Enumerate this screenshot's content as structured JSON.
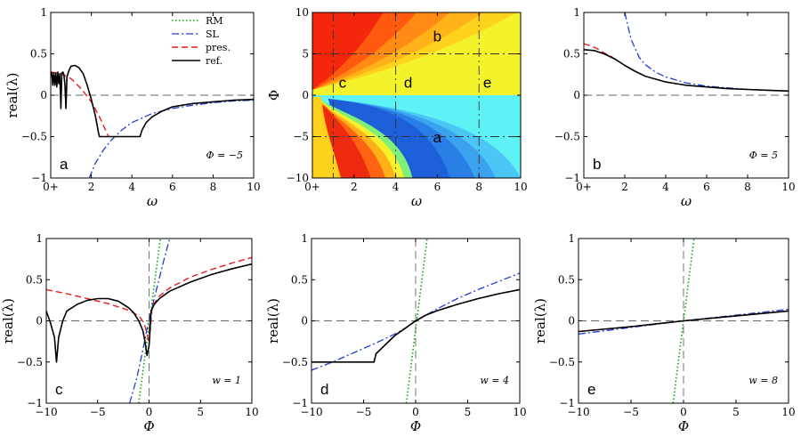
{
  "figure": {
    "colors": {
      "RM": "#00aa00",
      "SL": "#1f3fd8",
      "pres": "#e81a1a",
      "ref": "#000000",
      "zero": "#666666"
    },
    "legend": {
      "items": [
        {
          "key": "RM",
          "label": "RM"
        },
        {
          "key": "SL",
          "label": "SL"
        },
        {
          "key": "pres",
          "label": "pres."
        },
        {
          "key": "ref",
          "label": "ref."
        }
      ]
    }
  },
  "chart_data": [
    {
      "id": "a",
      "type": "line",
      "panel_label": "a",
      "annotation": "Φ = −5",
      "xlabel": "ω",
      "ylabel": "real(λ)",
      "xlim": [
        0,
        10
      ],
      "ylim": [
        -1,
        1
      ],
      "xticks": [
        {
          "v": 0,
          "label": "0+"
        },
        {
          "v": 2,
          "label": "2"
        },
        {
          "v": 4,
          "label": "4"
        },
        {
          "v": 6,
          "label": "6"
        },
        {
          "v": 8,
          "label": "8"
        },
        {
          "v": 10,
          "label": "10"
        }
      ],
      "yticks": [
        {
          "v": -1,
          "label": "−1"
        },
        {
          "v": -0.5,
          "label": "−0.5"
        },
        {
          "v": 0,
          "label": "0"
        },
        {
          "v": 0.5,
          "label": "0.5"
        },
        {
          "v": 1,
          "label": "1"
        }
      ],
      "refH": [
        0
      ],
      "refV": [],
      "legend": true,
      "series": [
        {
          "name": "SL",
          "style": "SL",
          "x": [
            1.9,
            2.2,
            2.6,
            3.0,
            3.5,
            4.0,
            5.0,
            6.0,
            7.0,
            8.0,
            9.0,
            10.0
          ],
          "y": [
            -1.0,
            -0.82,
            -0.66,
            -0.54,
            -0.42,
            -0.33,
            -0.22,
            -0.16,
            -0.12,
            -0.09,
            -0.07,
            -0.06
          ]
        },
        {
          "name": "pres.",
          "style": "pres",
          "x": [
            0,
            0.5,
            1.0,
            1.5,
            2.0,
            2.4,
            2.7,
            2.85
          ],
          "y": [
            0.28,
            0.26,
            0.2,
            0.08,
            -0.08,
            -0.26,
            -0.42,
            -0.5
          ]
        },
        {
          "name": "ref.",
          "style": "ref",
          "x": [
            0.05,
            0.1,
            0.15,
            0.2,
            0.25,
            0.3,
            0.35,
            0.4,
            0.45,
            0.5,
            0.55,
            0.6,
            0.65,
            0.7,
            0.75,
            0.8,
            0.9,
            1.0,
            1.2,
            1.4,
            1.6,
            1.8,
            2.0,
            2.2,
            2.35,
            2.4,
            4.4,
            4.5,
            4.7,
            5.0,
            5.5,
            6.0,
            7.0,
            8.0,
            9.0,
            10.0
          ],
          "y": [
            0.28,
            0.12,
            0.27,
            0.12,
            0.27,
            0.1,
            0.28,
            0.14,
            0.26,
            -0.16,
            0.27,
            0.28,
            0.25,
            0.12,
            -0.16,
            0.22,
            0.3,
            0.35,
            0.36,
            0.33,
            0.26,
            0.12,
            -0.05,
            -0.25,
            -0.45,
            -0.5,
            -0.5,
            -0.42,
            -0.33,
            -0.26,
            -0.19,
            -0.14,
            -0.1,
            -0.08,
            -0.06,
            -0.05
          ]
        }
      ]
    },
    {
      "id": "map",
      "type": "heatmap",
      "xlabel": "ω",
      "ylabel": "Φ",
      "xlim": [
        0,
        10
      ],
      "ylim": [
        -10,
        10
      ],
      "xticks": [
        {
          "v": 0,
          "label": "0+"
        },
        {
          "v": 2,
          "label": "2"
        },
        {
          "v": 4,
          "label": "4"
        },
        {
          "v": 6,
          "label": "6"
        },
        {
          "v": 8,
          "label": "8"
        },
        {
          "v": 10,
          "label": "10"
        }
      ],
      "yticks": [
        {
          "v": -10,
          "label": "−10"
        },
        {
          "v": -5,
          "label": "−5"
        },
        {
          "v": 0,
          "label": "0"
        },
        {
          "v": 5,
          "label": "5"
        },
        {
          "v": 10,
          "label": "10"
        }
      ],
      "dashH": [
        5,
        -5
      ],
      "dashV": [
        1,
        4,
        8
      ],
      "labels": [
        {
          "text": "b",
          "x": 6.0,
          "y": 6.5
        },
        {
          "text": "c",
          "x": 1.45,
          "y": 0.9
        },
        {
          "text": "d",
          "x": 4.6,
          "y": 0.9
        },
        {
          "text": "e",
          "x": 8.4,
          "y": 0.9
        },
        {
          "text": "a",
          "x": 6.0,
          "y": -5.7
        }
      ]
    },
    {
      "id": "b",
      "type": "line",
      "panel_label": "b",
      "annotation": "Φ = 5",
      "xlabel": "ω",
      "ylabel": "",
      "xlim": [
        0,
        10
      ],
      "ylim": [
        -1,
        1
      ],
      "xticks": [
        {
          "v": 0,
          "label": "0+"
        },
        {
          "v": 2,
          "label": "2"
        },
        {
          "v": 4,
          "label": "4"
        },
        {
          "v": 6,
          "label": "6"
        },
        {
          "v": 8,
          "label": "8"
        },
        {
          "v": 10,
          "label": "10"
        }
      ],
      "yticks": [
        {
          "v": -1,
          "label": "−1"
        },
        {
          "v": -0.5,
          "label": "−0.5"
        },
        {
          "v": 0,
          "label": "0"
        },
        {
          "v": 0.5,
          "label": "0.5"
        },
        {
          "v": 1,
          "label": "1"
        }
      ],
      "refH": [
        0
      ],
      "refV": [],
      "legend": false,
      "series": [
        {
          "name": "SL",
          "style": "SL",
          "x": [
            2.0,
            2.3,
            2.7,
            3.0,
            3.5,
            4.0,
            5.0,
            6.0,
            7.0,
            8.0,
            9.0,
            10.0
          ],
          "y": [
            1.0,
            0.68,
            0.46,
            0.37,
            0.28,
            0.22,
            0.15,
            0.11,
            0.09,
            0.07,
            0.06,
            0.05
          ]
        },
        {
          "name": "pres.",
          "style": "pres",
          "x": [
            0,
            0.3,
            0.6,
            1.0,
            1.4
          ],
          "y": [
            0.62,
            0.6,
            0.57,
            0.51,
            0.46
          ]
        },
        {
          "name": "ref.",
          "style": "ref",
          "x": [
            0,
            0.5,
            1.0,
            1.5,
            2.0,
            2.5,
            3.0,
            4.0,
            5.0,
            6.0,
            7.0,
            8.0,
            9.0,
            10.0
          ],
          "y": [
            0.55,
            0.54,
            0.5,
            0.44,
            0.36,
            0.29,
            0.23,
            0.16,
            0.12,
            0.1,
            0.08,
            0.07,
            0.06,
            0.05
          ]
        }
      ]
    },
    {
      "id": "c",
      "type": "line",
      "panel_label": "c",
      "annotation": "w = 1",
      "xlabel": "Φ",
      "ylabel": "real(λ)",
      "xlim": [
        -10,
        10
      ],
      "ylim": [
        -1,
        1
      ],
      "xticks": [
        {
          "v": -10,
          "label": "−10"
        },
        {
          "v": -5,
          "label": "−5"
        },
        {
          "v": 0,
          "label": "0"
        },
        {
          "v": 5,
          "label": "5"
        },
        {
          "v": 10,
          "label": "10"
        }
      ],
      "yticks": [
        {
          "v": -1,
          "label": "−1"
        },
        {
          "v": -0.5,
          "label": "−0.5"
        },
        {
          "v": 0,
          "label": "0"
        },
        {
          "v": 0.5,
          "label": "0.5"
        },
        {
          "v": 1,
          "label": "1"
        }
      ],
      "refH": [
        0
      ],
      "refV": [
        0
      ],
      "legend": false,
      "series": [
        {
          "name": "RM",
          "style": "RM",
          "x": [
            -1.0,
            1.1
          ],
          "y": [
            -1.0,
            1.0
          ]
        },
        {
          "name": "SL",
          "style": "SL",
          "x": [
            -1.9,
            -1.2,
            -0.6,
            -0.2,
            0.2,
            0.8,
            1.4,
            2.0
          ],
          "y": [
            -1.0,
            -0.7,
            -0.35,
            -0.1,
            0.12,
            0.42,
            0.72,
            1.0
          ]
        },
        {
          "name": "pres.",
          "style": "pres",
          "x": [
            -10,
            -8,
            -6,
            -4,
            -2,
            -1,
            -0.5,
            -0.2,
            0,
            0.3,
            1,
            2,
            4,
            6,
            8,
            10
          ],
          "y": [
            0.38,
            0.33,
            0.27,
            0.21,
            0.13,
            0.06,
            -0.02,
            -0.15,
            -0.28,
            0.18,
            0.3,
            0.4,
            0.53,
            0.62,
            0.7,
            0.77
          ]
        },
        {
          "name": "ref.",
          "style": "ref",
          "x": [
            -10,
            -9.6,
            -9.2,
            -9.0,
            -8.8,
            -8.4,
            -8.0,
            -7.0,
            -6.0,
            -5.0,
            -4.0,
            -3.0,
            -2.0,
            -1.5,
            -1.0,
            -0.6,
            -0.4,
            -0.2,
            0,
            0.2,
            0.5,
            1,
            2,
            4,
            6,
            8,
            10
          ],
          "y": [
            0.12,
            -0.02,
            -0.2,
            -0.5,
            -0.2,
            0.0,
            0.12,
            0.2,
            0.25,
            0.27,
            0.27,
            0.24,
            0.16,
            0.1,
            0.0,
            -0.12,
            -0.25,
            -0.42,
            -0.3,
            0.12,
            0.2,
            0.27,
            0.36,
            0.47,
            0.56,
            0.63,
            0.69
          ]
        }
      ]
    },
    {
      "id": "d",
      "type": "line",
      "panel_label": "d",
      "annotation": "w = 4",
      "xlabel": "Φ",
      "ylabel": "real(λ)",
      "xlim": [
        -10,
        10
      ],
      "ylim": [
        -1,
        1
      ],
      "xticks": [
        {
          "v": -10,
          "label": "−10"
        },
        {
          "v": -5,
          "label": "−5"
        },
        {
          "v": 0,
          "label": "0"
        },
        {
          "v": 5,
          "label": "5"
        },
        {
          "v": 10,
          "label": "10"
        }
      ],
      "yticks": [
        {
          "v": -1,
          "label": "−1"
        },
        {
          "v": -0.5,
          "label": "−0.5"
        },
        {
          "v": 0,
          "label": "0"
        },
        {
          "v": 0.5,
          "label": "0.5"
        },
        {
          "v": 1,
          "label": "1"
        }
      ],
      "refH": [
        0
      ],
      "refV": [
        0
      ],
      "legend": false,
      "series": [
        {
          "name": "RM",
          "style": "RM",
          "x": [
            -0.9,
            1.1
          ],
          "y": [
            -1.0,
            1.0
          ]
        },
        {
          "name": "SL",
          "style": "SL",
          "x": [
            -10,
            -8,
            -6,
            -4,
            -2,
            -1,
            0,
            1,
            2,
            4,
            6,
            8,
            10
          ],
          "y": [
            -0.6,
            -0.5,
            -0.39,
            -0.28,
            -0.16,
            -0.09,
            0.0,
            0.07,
            0.14,
            0.27,
            0.38,
            0.48,
            0.58
          ]
        },
        {
          "name": "pres.",
          "style": "pres",
          "x": [
            -10,
            -4,
            -3.8,
            -3,
            -2,
            -1,
            0,
            1,
            2,
            4,
            6,
            8,
            10
          ],
          "y": [
            -0.5,
            -0.5,
            -0.4,
            -0.3,
            -0.18,
            -0.09,
            0.0,
            0.07,
            0.12,
            0.2,
            0.27,
            0.33,
            0.38
          ]
        },
        {
          "name": "ref.",
          "style": "ref",
          "x": [
            -10,
            -4,
            -3.8,
            -3,
            -2,
            -1,
            0,
            1,
            2,
            4,
            6,
            8,
            10
          ],
          "y": [
            -0.5,
            -0.5,
            -0.4,
            -0.3,
            -0.18,
            -0.09,
            0.0,
            0.07,
            0.12,
            0.2,
            0.27,
            0.33,
            0.38
          ]
        }
      ]
    },
    {
      "id": "e",
      "type": "line",
      "panel_label": "e",
      "annotation": "w = 8",
      "xlabel": "Φ",
      "ylabel": "real(λ)",
      "xlim": [
        -10,
        10
      ],
      "ylim": [
        -1,
        1
      ],
      "xticks": [
        {
          "v": -10,
          "label": "−10"
        },
        {
          "v": -5,
          "label": "−5"
        },
        {
          "v": 0,
          "label": "0"
        },
        {
          "v": 5,
          "label": "5"
        },
        {
          "v": 10,
          "label": "10"
        }
      ],
      "yticks": [
        {
          "v": -1,
          "label": "−1"
        },
        {
          "v": -0.5,
          "label": "−0.5"
        },
        {
          "v": 0,
          "label": "0"
        },
        {
          "v": 0.5,
          "label": "0.5"
        },
        {
          "v": 1,
          "label": "1"
        }
      ],
      "refH": [
        0
      ],
      "refV": [
        0
      ],
      "legend": false,
      "series": [
        {
          "name": "RM",
          "style": "RM",
          "x": [
            -1.0,
            1.0
          ],
          "y": [
            -1.0,
            1.0
          ]
        },
        {
          "name": "SL",
          "style": "SL",
          "x": [
            -10,
            -5,
            0,
            5,
            10
          ],
          "y": [
            -0.16,
            -0.08,
            0.0,
            0.07,
            0.14
          ]
        },
        {
          "name": "pres.",
          "style": "pres",
          "x": [
            -10,
            -5,
            0,
            5,
            10
          ],
          "y": [
            -0.13,
            -0.07,
            0.0,
            0.06,
            0.12
          ]
        },
        {
          "name": "ref.",
          "style": "ref",
          "x": [
            -10,
            -5,
            0,
            5,
            10
          ],
          "y": [
            -0.13,
            -0.07,
            0.0,
            0.06,
            0.12
          ]
        }
      ]
    }
  ]
}
